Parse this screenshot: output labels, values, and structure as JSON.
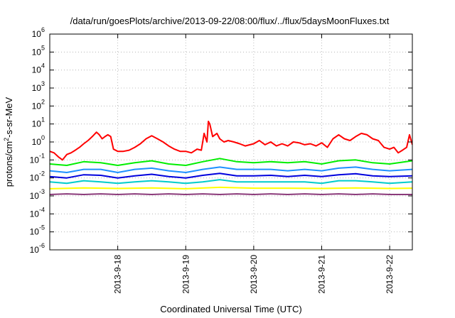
{
  "chart_data": {
    "type": "line",
    "title": "/data/run/goesPlots/archive/2013-09-22/08:00/flux/../flux/5daysMoonFluxes.txt",
    "xlabel": "Coordinated Universal Time (UTC)",
    "ylabel": {
      "base": "protons/cm",
      "sup": "2",
      "rest": "-s-sr-MeV"
    },
    "y_scale": "log",
    "ylim": [
      1e-06,
      1000000.0
    ],
    "xlim": [
      "2013-09-17T00:00",
      "2013-09-22T08:00"
    ],
    "grid": true,
    "legend": "none",
    "x_ticks": [
      {
        "label": "2013-9-18",
        "t": "2013-09-18T00:00"
      },
      {
        "label": "2013-9-19",
        "t": "2013-09-19T00:00"
      },
      {
        "label": "2013-9-20",
        "t": "2013-09-20T00:00"
      },
      {
        "label": "2013-9-21",
        "t": "2013-09-21T00:00"
      },
      {
        "label": "2013-9-22",
        "t": "2013-09-22T00:00"
      }
    ],
    "y_ticks": [
      {
        "base": "10",
        "exp": "6",
        "value": 1000000.0
      },
      {
        "base": "10",
        "exp": "5",
        "value": 100000.0
      },
      {
        "base": "10",
        "exp": "4",
        "value": 10000.0
      },
      {
        "base": "10",
        "exp": "3",
        "value": 1000.0
      },
      {
        "base": "10",
        "exp": "2",
        "value": 100.0
      },
      {
        "base": "10",
        "exp": "1",
        "value": 10.0
      },
      {
        "base": "10",
        "exp": "0",
        "value": 1
      },
      {
        "base": "10",
        "exp": "-1",
        "value": 0.1
      },
      {
        "base": "10",
        "exp": "-2",
        "value": 0.01
      },
      {
        "base": "10",
        "exp": "-3",
        "value": 0.001
      },
      {
        "base": "10",
        "exp": "-4",
        "value": 0.0001
      },
      {
        "base": "10",
        "exp": "-5",
        "value": 1e-05
      },
      {
        "base": "10",
        "exp": "-6",
        "value": 1e-06
      }
    ],
    "series": [
      {
        "color": "#ff0000",
        "width": 2,
        "points": [
          [
            "2013-09-17T00:00",
            0.3
          ],
          [
            "2013-09-17T01:30",
            0.25
          ],
          [
            "2013-09-17T03:00",
            0.15
          ],
          [
            "2013-09-17T04:30",
            0.1
          ],
          [
            "2013-09-17T06:00",
            0.2
          ],
          [
            "2013-09-17T07:30",
            0.25
          ],
          [
            "2013-09-17T09:00",
            0.35
          ],
          [
            "2013-09-17T10:30",
            0.5
          ],
          [
            "2013-09-17T12:00",
            0.8
          ],
          [
            "2013-09-17T13:30",
            1.2
          ],
          [
            "2013-09-17T15:00",
            2.0
          ],
          [
            "2013-09-17T16:30",
            3.5
          ],
          [
            "2013-09-17T17:30",
            2.5
          ],
          [
            "2013-09-17T18:30",
            1.5
          ],
          [
            "2013-09-17T19:30",
            2.0
          ],
          [
            "2013-09-17T20:30",
            2.5
          ],
          [
            "2013-09-17T21:30",
            2.0
          ],
          [
            "2013-09-17T22:30",
            0.4
          ],
          [
            "2013-09-18T00:00",
            0.3
          ],
          [
            "2013-09-18T02:00",
            0.3
          ],
          [
            "2013-09-18T04:00",
            0.35
          ],
          [
            "2013-09-18T06:00",
            0.5
          ],
          [
            "2013-09-18T08:00",
            0.8
          ],
          [
            "2013-09-18T10:00",
            1.5
          ],
          [
            "2013-09-18T12:00",
            2.2
          ],
          [
            "2013-09-18T14:00",
            1.5
          ],
          [
            "2013-09-18T16:00",
            1.0
          ],
          [
            "2013-09-18T18:00",
            0.6
          ],
          [
            "2013-09-18T20:00",
            0.4
          ],
          [
            "2013-09-18T22:00",
            0.3
          ],
          [
            "2013-09-19T00:00",
            0.3
          ],
          [
            "2013-09-19T02:00",
            0.25
          ],
          [
            "2013-09-19T04:00",
            0.4
          ],
          [
            "2013-09-19T05:30",
            0.35
          ],
          [
            "2013-09-19T06:30",
            3.0
          ],
          [
            "2013-09-19T07:30",
            1.0
          ],
          [
            "2013-09-19T08:00",
            14.0
          ],
          [
            "2013-09-19T08:30",
            10.0
          ],
          [
            "2013-09-19T09:30",
            2.0
          ],
          [
            "2013-09-19T11:00",
            3.0
          ],
          [
            "2013-09-19T12:00",
            1.5
          ],
          [
            "2013-09-19T13:30",
            1.0
          ],
          [
            "2013-09-19T15:00",
            1.2
          ],
          [
            "2013-09-19T17:00",
            1.0
          ],
          [
            "2013-09-19T19:00",
            0.8
          ],
          [
            "2013-09-19T21:00",
            0.6
          ],
          [
            "2013-09-20T00:00",
            0.8
          ],
          [
            "2013-09-20T02:00",
            1.2
          ],
          [
            "2013-09-20T04:00",
            0.7
          ],
          [
            "2013-09-20T06:00",
            1.0
          ],
          [
            "2013-09-20T08:00",
            0.6
          ],
          [
            "2013-09-20T10:00",
            0.8
          ],
          [
            "2013-09-20T12:00",
            0.6
          ],
          [
            "2013-09-20T14:00",
            1.0
          ],
          [
            "2013-09-20T16:00",
            0.9
          ],
          [
            "2013-09-20T18:00",
            0.7
          ],
          [
            "2013-09-20T20:00",
            0.8
          ],
          [
            "2013-09-20T22:00",
            0.6
          ],
          [
            "2013-09-21T00:00",
            0.9
          ],
          [
            "2013-09-21T02:00",
            0.5
          ],
          [
            "2013-09-21T04:00",
            1.5
          ],
          [
            "2013-09-21T06:00",
            2.5
          ],
          [
            "2013-09-21T08:00",
            1.5
          ],
          [
            "2013-09-21T10:00",
            1.2
          ],
          [
            "2013-09-21T12:00",
            2.0
          ],
          [
            "2013-09-21T14:00",
            3.0
          ],
          [
            "2013-09-21T16:00",
            2.5
          ],
          [
            "2013-09-21T18:00",
            1.5
          ],
          [
            "2013-09-21T20:00",
            1.2
          ],
          [
            "2013-09-21T22:00",
            0.5
          ],
          [
            "2013-09-22T00:00",
            0.4
          ],
          [
            "2013-09-22T01:30",
            0.5
          ],
          [
            "2013-09-22T03:00",
            0.25
          ],
          [
            "2013-09-22T04:30",
            0.35
          ],
          [
            "2013-09-22T06:00",
            0.5
          ],
          [
            "2013-09-22T07:00",
            2.5
          ],
          [
            "2013-09-22T08:00",
            0.7
          ]
        ]
      },
      {
        "color": "#00ee00",
        "width": 2,
        "points": [
          [
            "2013-09-17T00:00",
            0.06
          ],
          [
            "2013-09-17T06:00",
            0.05
          ],
          [
            "2013-09-17T12:00",
            0.08
          ],
          [
            "2013-09-17T18:00",
            0.07
          ],
          [
            "2013-09-18T00:00",
            0.05
          ],
          [
            "2013-09-18T06:00",
            0.07
          ],
          [
            "2013-09-18T12:00",
            0.09
          ],
          [
            "2013-09-18T18:00",
            0.06
          ],
          [
            "2013-09-19T00:00",
            0.05
          ],
          [
            "2013-09-19T06:00",
            0.08
          ],
          [
            "2013-09-19T12:00",
            0.12
          ],
          [
            "2013-09-19T18:00",
            0.08
          ],
          [
            "2013-09-20T00:00",
            0.07
          ],
          [
            "2013-09-20T06:00",
            0.08
          ],
          [
            "2013-09-20T12:00",
            0.07
          ],
          [
            "2013-09-20T18:00",
            0.08
          ],
          [
            "2013-09-21T00:00",
            0.06
          ],
          [
            "2013-09-21T06:00",
            0.09
          ],
          [
            "2013-09-21T12:00",
            0.1
          ],
          [
            "2013-09-21T18:00",
            0.07
          ],
          [
            "2013-09-22T00:00",
            0.06
          ],
          [
            "2013-09-22T08:00",
            0.09
          ]
        ]
      },
      {
        "color": "#1e90ff",
        "width": 2,
        "points": [
          [
            "2013-09-17T00:00",
            0.025
          ],
          [
            "2013-09-17T06:00",
            0.02
          ],
          [
            "2013-09-17T12:00",
            0.03
          ],
          [
            "2013-09-17T18:00",
            0.03
          ],
          [
            "2013-09-18T00:00",
            0.02
          ],
          [
            "2013-09-18T06:00",
            0.03
          ],
          [
            "2013-09-18T12:00",
            0.035
          ],
          [
            "2013-09-18T18:00",
            0.025
          ],
          [
            "2013-09-19T00:00",
            0.02
          ],
          [
            "2013-09-19T06:00",
            0.03
          ],
          [
            "2013-09-19T12:00",
            0.04
          ],
          [
            "2013-09-19T18:00",
            0.03
          ],
          [
            "2013-09-20T00:00",
            0.03
          ],
          [
            "2013-09-20T06:00",
            0.03
          ],
          [
            "2013-09-20T12:00",
            0.025
          ],
          [
            "2013-09-20T18:00",
            0.03
          ],
          [
            "2013-09-21T00:00",
            0.025
          ],
          [
            "2013-09-21T06:00",
            0.035
          ],
          [
            "2013-09-21T12:00",
            0.04
          ],
          [
            "2013-09-21T18:00",
            0.03
          ],
          [
            "2013-09-22T00:00",
            0.025
          ],
          [
            "2013-09-22T08:00",
            0.03
          ]
        ]
      },
      {
        "color": "#0000dd",
        "width": 2,
        "points": [
          [
            "2013-09-17T00:00",
            0.012
          ],
          [
            "2013-09-17T06:00",
            0.01
          ],
          [
            "2013-09-17T12:00",
            0.015
          ],
          [
            "2013-09-17T18:00",
            0.014
          ],
          [
            "2013-09-18T00:00",
            0.01
          ],
          [
            "2013-09-18T06:00",
            0.013
          ],
          [
            "2013-09-18T12:00",
            0.016
          ],
          [
            "2013-09-18T18:00",
            0.012
          ],
          [
            "2013-09-19T00:00",
            0.01
          ],
          [
            "2013-09-19T06:00",
            0.014
          ],
          [
            "2013-09-19T12:00",
            0.018
          ],
          [
            "2013-09-19T18:00",
            0.013
          ],
          [
            "2013-09-20T00:00",
            0.013
          ],
          [
            "2013-09-20T06:00",
            0.014
          ],
          [
            "2013-09-20T12:00",
            0.012
          ],
          [
            "2013-09-20T18:00",
            0.014
          ],
          [
            "2013-09-21T00:00",
            0.012
          ],
          [
            "2013-09-21T06:00",
            0.015
          ],
          [
            "2013-09-21T12:00",
            0.017
          ],
          [
            "2013-09-21T18:00",
            0.013
          ],
          [
            "2013-09-22T00:00",
            0.012
          ],
          [
            "2013-09-22T08:00",
            0.013
          ]
        ]
      },
      {
        "color": "#00cccc",
        "width": 2,
        "points": [
          [
            "2013-09-17T00:00",
            0.006
          ],
          [
            "2013-09-17T06:00",
            0.005
          ],
          [
            "2013-09-17T12:00",
            0.007
          ],
          [
            "2013-09-17T18:00",
            0.006
          ],
          [
            "2013-09-18T00:00",
            0.005
          ],
          [
            "2013-09-18T06:00",
            0.006
          ],
          [
            "2013-09-18T12:00",
            0.007
          ],
          [
            "2013-09-18T18:00",
            0.006
          ],
          [
            "2013-09-19T00:00",
            0.005
          ],
          [
            "2013-09-19T06:00",
            0.006
          ],
          [
            "2013-09-19T12:00",
            0.008
          ],
          [
            "2013-09-19T18:00",
            0.006
          ],
          [
            "2013-09-20T00:00",
            0.006
          ],
          [
            "2013-09-20T06:00",
            0.006
          ],
          [
            "2013-09-20T12:00",
            0.006
          ],
          [
            "2013-09-20T18:00",
            0.006
          ],
          [
            "2013-09-21T00:00",
            0.005
          ],
          [
            "2013-09-21T06:00",
            0.007
          ],
          [
            "2013-09-21T12:00",
            0.007
          ],
          [
            "2013-09-21T18:00",
            0.006
          ],
          [
            "2013-09-22T00:00",
            0.005
          ],
          [
            "2013-09-22T08:00",
            0.006
          ]
        ]
      },
      {
        "color": "#ffff00",
        "width": 2,
        "points": [
          [
            "2013-09-17T00:00",
            0.0025
          ],
          [
            "2013-09-17T12:00",
            0.0028
          ],
          [
            "2013-09-18T00:00",
            0.0026
          ],
          [
            "2013-09-18T12:00",
            0.0028
          ],
          [
            "2013-09-19T00:00",
            0.0025
          ],
          [
            "2013-09-19T12:00",
            0.003
          ],
          [
            "2013-09-20T00:00",
            0.0027
          ],
          [
            "2013-09-20T12:00",
            0.0027
          ],
          [
            "2013-09-21T00:00",
            0.0026
          ],
          [
            "2013-09-21T12:00",
            0.0028
          ],
          [
            "2013-09-22T00:00",
            0.0026
          ],
          [
            "2013-09-22T08:00",
            0.0027
          ]
        ]
      },
      {
        "color": "#8b3a7a",
        "width": 2,
        "points": [
          [
            "2013-09-17T00:00",
            0.0012
          ],
          [
            "2013-09-17T06:00",
            0.0013
          ],
          [
            "2013-09-17T12:00",
            0.0012
          ],
          [
            "2013-09-17T18:00",
            0.0013
          ],
          [
            "2013-09-18T00:00",
            0.0012
          ],
          [
            "2013-09-18T06:00",
            0.0013
          ],
          [
            "2013-09-18T12:00",
            0.0012
          ],
          [
            "2013-09-18T18:00",
            0.0013
          ],
          [
            "2013-09-19T00:00",
            0.0012
          ],
          [
            "2013-09-19T06:00",
            0.0013
          ],
          [
            "2013-09-19T12:00",
            0.0012
          ],
          [
            "2013-09-19T18:00",
            0.0013
          ],
          [
            "2013-09-20T00:00",
            0.0012
          ],
          [
            "2013-09-20T06:00",
            0.0013
          ],
          [
            "2013-09-20T12:00",
            0.0012
          ],
          [
            "2013-09-20T18:00",
            0.0013
          ],
          [
            "2013-09-21T00:00",
            0.0012
          ],
          [
            "2013-09-21T06:00",
            0.0013
          ],
          [
            "2013-09-21T12:00",
            0.0012
          ],
          [
            "2013-09-21T18:00",
            0.0013
          ],
          [
            "2013-09-22T00:00",
            0.0012
          ],
          [
            "2013-09-22T08:00",
            0.0012
          ]
        ]
      }
    ]
  }
}
